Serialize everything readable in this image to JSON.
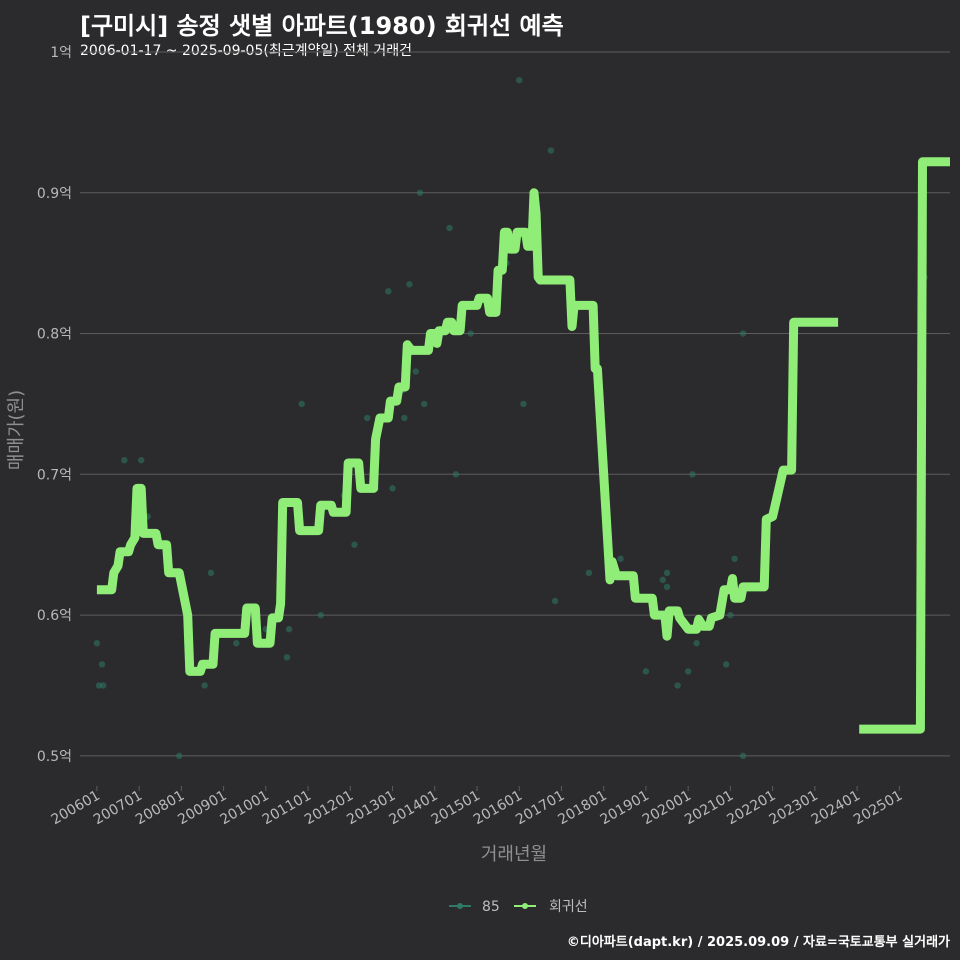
{
  "title": "[구미시] 송정 샛별 아파트(1980) 회귀선 예측",
  "subtitle": "2006-01-17 ~ 2025-09-05(최근계약일) 전체 거래건",
  "footer": "©디아파트(dapt.kr) / 2025.09.09 / 자료=국토교통부 실거래가",
  "colors": {
    "background": "#2b2b2d",
    "scatter": "#2e7a66",
    "regression": "#90ee78",
    "grid": "#5c5c5c"
  },
  "chart_data": {
    "type": "line",
    "xlabel": "거래년월",
    "ylabel": "매매가(원)",
    "xlim": [
      2005.6,
      2026.2
    ],
    "ylim": [
      0.48,
      1.0
    ],
    "yticks": [
      0.5,
      0.6,
      0.7,
      0.8,
      0.9,
      1.0
    ],
    "ytick_labels": [
      "0.5억",
      "0.6억",
      "0.7억",
      "0.8억",
      "0.9억",
      "1억"
    ],
    "xticks": [
      2006,
      2007,
      2008,
      2009,
      2010,
      2011,
      2012,
      2013,
      2014,
      2015,
      2016,
      2017,
      2018,
      2019,
      2020,
      2021,
      2022,
      2023,
      2024,
      2025
    ],
    "xtick_labels": [
      "200601",
      "200701",
      "200801",
      "200901",
      "201001",
      "201101",
      "201201",
      "201301",
      "201401",
      "201501",
      "201601",
      "201701",
      "201801",
      "201901",
      "202001",
      "202101",
      "202201",
      "202301",
      "202401",
      "202501"
    ],
    "legend": [
      "85",
      "회귀선"
    ],
    "series": [
      {
        "name": "85",
        "kind": "scatter",
        "points": [
          [
            2006.0,
            0.58
          ],
          [
            2006.05,
            0.55
          ],
          [
            2006.12,
            0.565
          ],
          [
            2006.15,
            0.55
          ],
          [
            2006.65,
            0.71
          ],
          [
            2006.8,
            0.65
          ],
          [
            2007.05,
            0.71
          ],
          [
            2007.2,
            0.67
          ],
          [
            2007.95,
            0.5
          ],
          [
            2008.55,
            0.55
          ],
          [
            2008.7,
            0.63
          ],
          [
            2009.3,
            0.58
          ],
          [
            2010.0,
            0.59
          ],
          [
            2010.5,
            0.57
          ],
          [
            2010.55,
            0.59
          ],
          [
            2010.85,
            0.75
          ],
          [
            2011.3,
            0.6
          ],
          [
            2011.85,
            0.685
          ],
          [
            2012.1,
            0.65
          ],
          [
            2012.4,
            0.74
          ],
          [
            2012.6,
            0.69
          ],
          [
            2012.9,
            0.83
          ],
          [
            2013.0,
            0.69
          ],
          [
            2013.25,
            0.76
          ],
          [
            2013.28,
            0.74
          ],
          [
            2013.4,
            0.835
          ],
          [
            2013.55,
            0.773
          ],
          [
            2013.65,
            0.9
          ],
          [
            2013.75,
            0.75
          ],
          [
            2014.35,
            0.875
          ],
          [
            2014.5,
            0.7
          ],
          [
            2014.85,
            0.8
          ],
          [
            2015.7,
            0.85
          ],
          [
            2016.0,
            0.98
          ],
          [
            2016.1,
            0.75
          ],
          [
            2016.75,
            0.93
          ],
          [
            2016.85,
            0.61
          ],
          [
            2017.65,
            0.63
          ],
          [
            2018.4,
            0.64
          ],
          [
            2019.0,
            0.56
          ],
          [
            2019.4,
            0.625
          ],
          [
            2019.5,
            0.63
          ],
          [
            2019.5,
            0.62
          ],
          [
            2019.75,
            0.55
          ],
          [
            2020.0,
            0.56
          ],
          [
            2020.1,
            0.7
          ],
          [
            2020.2,
            0.58
          ],
          [
            2020.9,
            0.565
          ],
          [
            2021.0,
            0.6
          ],
          [
            2021.1,
            0.64
          ],
          [
            2021.3,
            0.5
          ],
          [
            2021.3,
            0.8
          ],
          [
            2025.6,
            0.84
          ]
        ]
      },
      {
        "name": "회귀선",
        "kind": "line",
        "points": [
          [
            2006.0,
            0.618
          ],
          [
            2006.35,
            0.618
          ],
          [
            2006.4,
            0.63
          ],
          [
            2006.5,
            0.635
          ],
          [
            2006.55,
            0.645
          ],
          [
            2006.75,
            0.645
          ],
          [
            2006.8,
            0.65
          ],
          [
            2006.9,
            0.655
          ],
          [
            2006.95,
            0.69
          ],
          [
            2007.05,
            0.69
          ],
          [
            2007.1,
            0.658
          ],
          [
            2007.4,
            0.658
          ],
          [
            2007.45,
            0.65
          ],
          [
            2007.65,
            0.65
          ],
          [
            2007.7,
            0.63
          ],
          [
            2007.95,
            0.63
          ],
          [
            2008.15,
            0.6
          ],
          [
            2008.2,
            0.56
          ],
          [
            2008.45,
            0.56
          ],
          [
            2008.5,
            0.565
          ],
          [
            2008.75,
            0.565
          ],
          [
            2008.8,
            0.587
          ],
          [
            2009.5,
            0.587
          ],
          [
            2009.55,
            0.605
          ],
          [
            2009.75,
            0.605
          ],
          [
            2009.8,
            0.58
          ],
          [
            2010.1,
            0.58
          ],
          [
            2010.15,
            0.598
          ],
          [
            2010.3,
            0.598
          ],
          [
            2010.35,
            0.608
          ],
          [
            2010.4,
            0.68
          ],
          [
            2010.75,
            0.68
          ],
          [
            2010.8,
            0.66
          ],
          [
            2011.25,
            0.66
          ],
          [
            2011.3,
            0.678
          ],
          [
            2011.55,
            0.678
          ],
          [
            2011.6,
            0.673
          ],
          [
            2011.9,
            0.673
          ],
          [
            2011.95,
            0.708
          ],
          [
            2012.2,
            0.708
          ],
          [
            2012.25,
            0.69
          ],
          [
            2012.55,
            0.69
          ],
          [
            2012.6,
            0.725
          ],
          [
            2012.7,
            0.74
          ],
          [
            2012.9,
            0.74
          ],
          [
            2012.95,
            0.752
          ],
          [
            2013.1,
            0.752
          ],
          [
            2013.15,
            0.762
          ],
          [
            2013.3,
            0.762
          ],
          [
            2013.35,
            0.792
          ],
          [
            2013.45,
            0.788
          ],
          [
            2013.85,
            0.788
          ],
          [
            2013.9,
            0.8
          ],
          [
            2014.0,
            0.8
          ],
          [
            2014.05,
            0.793
          ],
          [
            2014.1,
            0.802
          ],
          [
            2014.25,
            0.802
          ],
          [
            2014.3,
            0.808
          ],
          [
            2014.4,
            0.808
          ],
          [
            2014.45,
            0.802
          ],
          [
            2014.6,
            0.802
          ],
          [
            2014.65,
            0.82
          ],
          [
            2015.0,
            0.82
          ],
          [
            2015.05,
            0.825
          ],
          [
            2015.25,
            0.825
          ],
          [
            2015.3,
            0.815
          ],
          [
            2015.45,
            0.815
          ],
          [
            2015.5,
            0.845
          ],
          [
            2015.6,
            0.845
          ],
          [
            2015.65,
            0.872
          ],
          [
            2015.72,
            0.872
          ],
          [
            2015.78,
            0.86
          ],
          [
            2015.9,
            0.86
          ],
          [
            2015.95,
            0.872
          ],
          [
            2016.15,
            0.872
          ],
          [
            2016.2,
            0.862
          ],
          [
            2016.3,
            0.862
          ],
          [
            2016.35,
            0.9
          ],
          [
            2016.4,
            0.885
          ],
          [
            2016.45,
            0.84
          ],
          [
            2016.5,
            0.838
          ],
          [
            2017.2,
            0.838
          ],
          [
            2017.25,
            0.805
          ],
          [
            2017.3,
            0.82
          ],
          [
            2017.75,
            0.82
          ],
          [
            2017.8,
            0.775
          ],
          [
            2017.85,
            0.775
          ],
          [
            2018.15,
            0.625
          ],
          [
            2018.2,
            0.638
          ],
          [
            2018.3,
            0.628
          ],
          [
            2018.7,
            0.628
          ],
          [
            2018.75,
            0.612
          ],
          [
            2019.15,
            0.612
          ],
          [
            2019.2,
            0.6
          ],
          [
            2019.45,
            0.6
          ],
          [
            2019.5,
            0.585
          ],
          [
            2019.55,
            0.603
          ],
          [
            2019.75,
            0.603
          ],
          [
            2019.8,
            0.598
          ],
          [
            2020.0,
            0.59
          ],
          [
            2020.2,
            0.59
          ],
          [
            2020.25,
            0.597
          ],
          [
            2020.35,
            0.592
          ],
          [
            2020.5,
            0.592
          ],
          [
            2020.55,
            0.598
          ],
          [
            2020.75,
            0.6
          ],
          [
            2020.85,
            0.618
          ],
          [
            2021.0,
            0.618
          ],
          [
            2021.05,
            0.626
          ],
          [
            2021.1,
            0.612
          ],
          [
            2021.25,
            0.612
          ],
          [
            2021.3,
            0.62
          ],
          [
            2021.8,
            0.62
          ],
          [
            2021.85,
            0.668
          ],
          [
            2022.0,
            0.67
          ],
          [
            2022.25,
            0.703
          ],
          [
            2022.45,
            0.703
          ],
          [
            2022.5,
            0.808
          ],
          [
            2023.55,
            0.808
          ],
          null,
          [
            2024.05,
            0.519
          ],
          [
            2025.5,
            0.519
          ],
          [
            2025.55,
            0.922
          ],
          [
            2026.3,
            0.922
          ]
        ]
      }
    ]
  }
}
